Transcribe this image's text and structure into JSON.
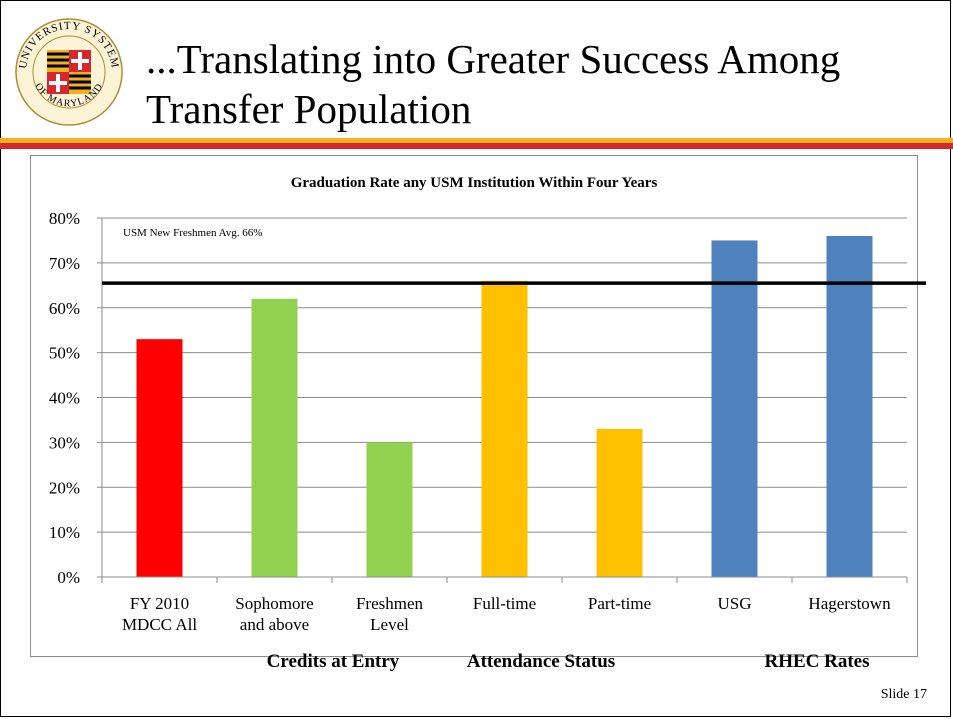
{
  "slide": {
    "title": "...Translating into Greater Success Among\nTransfer Population",
    "slide_number": "Slide 17",
    "logo": {
      "text_top": "UNIVERSITY SYSTEM",
      "text_bottom": "OF MARYLAND",
      "colors": [
        "#f2b21b",
        "#d7262e",
        "#000000",
        "#ffffff"
      ]
    }
  },
  "chart_data": {
    "type": "bar",
    "title": "Graduation Rate any USM Institution Within Four Years",
    "categories": [
      [
        "FY 2010",
        "MDCC All"
      ],
      [
        "Sophomore",
        "and above"
      ],
      [
        "Freshmen",
        "Level"
      ],
      [
        "Full-time"
      ],
      [
        "Part-time"
      ],
      [
        "USG"
      ],
      [
        "Hagerstown"
      ]
    ],
    "values": [
      53,
      62,
      30,
      66,
      33,
      75,
      76
    ],
    "bar_colors": [
      "#ff0000",
      "#92d050",
      "#92d050",
      "#ffc000",
      "#ffc000",
      "#4f81bd",
      "#4f81bd"
    ],
    "ylim": [
      0,
      80
    ],
    "yticks": [
      "0%",
      "10%",
      "20%",
      "30%",
      "40%",
      "50%",
      "60%",
      "70%",
      "80%"
    ],
    "grid": true,
    "reference_line": {
      "value": 65.5,
      "label": "USM New Freshmen Avg. 66%"
    },
    "group_labels": [
      "Credits at Entry",
      "Attendance Status",
      "RHEC Rates"
    ]
  }
}
